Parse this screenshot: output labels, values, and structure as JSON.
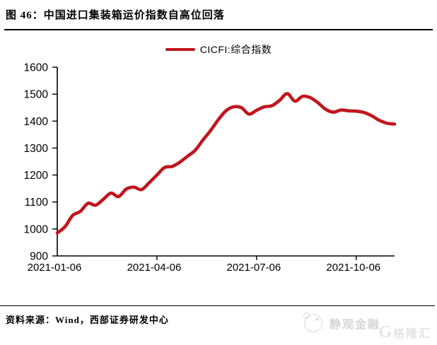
{
  "header": {
    "title": "图 46：中国进口集装箱运价指数自高位回落"
  },
  "legend": {
    "label": "CICFI:综合指数"
  },
  "footer": {
    "source": "资料来源：Wind，西部证券研发中心"
  },
  "watermark": {
    "primary": "静观金融",
    "secondary_initial": "G",
    "secondary": "格隆汇"
  },
  "colors": {
    "line": "#c0161d",
    "axis": "#000000",
    "text": "#000000",
    "watermark": "#d6d6d6"
  },
  "chart_data": {
    "type": "line",
    "title": "中国进口集装箱运价指数自高位回落",
    "series": [
      {
        "name": "CICFI:综合指数",
        "x": [
          "2021-01-06",
          "2021-01-13",
          "2021-01-20",
          "2021-01-27",
          "2021-02-03",
          "2021-02-10",
          "2021-02-17",
          "2021-02-24",
          "2021-03-03",
          "2021-03-10",
          "2021-03-17",
          "2021-03-24",
          "2021-03-31",
          "2021-04-07",
          "2021-04-14",
          "2021-04-21",
          "2021-04-28",
          "2021-05-05",
          "2021-05-12",
          "2021-05-19",
          "2021-05-26",
          "2021-06-02",
          "2021-06-09",
          "2021-06-16",
          "2021-06-23",
          "2021-06-30",
          "2021-07-07",
          "2021-07-14",
          "2021-07-21",
          "2021-07-28",
          "2021-08-04",
          "2021-08-11",
          "2021-08-18",
          "2021-08-25",
          "2021-09-01",
          "2021-09-08",
          "2021-09-15",
          "2021-09-22",
          "2021-09-29",
          "2021-10-06",
          "2021-10-13",
          "2021-10-20",
          "2021-10-27",
          "2021-11-03",
          "2021-11-10"
        ],
        "values": [
          985,
          1008,
          1050,
          1065,
          1095,
          1088,
          1110,
          1133,
          1120,
          1148,
          1155,
          1146,
          1172,
          1200,
          1228,
          1232,
          1248,
          1270,
          1292,
          1330,
          1365,
          1405,
          1438,
          1453,
          1450,
          1426,
          1440,
          1453,
          1457,
          1477,
          1502,
          1474,
          1492,
          1487,
          1468,
          1444,
          1433,
          1441,
          1438,
          1437,
          1432,
          1420,
          1403,
          1392,
          1389
        ]
      }
    ],
    "xlabel": "",
    "ylabel": "",
    "ylim": [
      900,
      1600
    ],
    "ytick_step": 100,
    "ytick_labels": [
      "900",
      "1000",
      "1100",
      "1200",
      "1300",
      "1400",
      "1500",
      "1600"
    ],
    "xtick_indices": [
      0,
      13,
      26,
      39
    ],
    "xtick_labels": [
      "2021-01-06",
      "2021-04-06",
      "2021-07-06",
      "2021-10-06"
    ],
    "grid": false,
    "legend_position": "top-center",
    "line_smoothed": true
  }
}
